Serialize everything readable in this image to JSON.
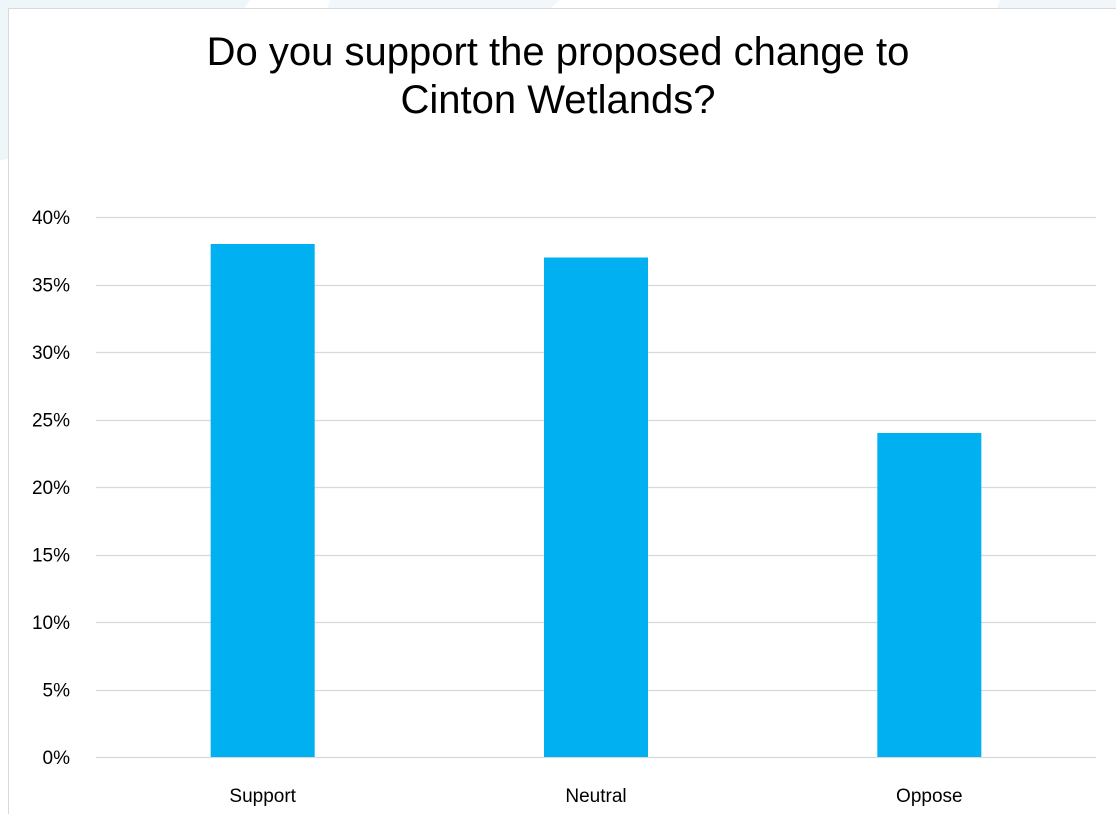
{
  "chart_data": {
    "type": "bar",
    "title": "Do you support the proposed change to Cinton Wetlands?",
    "title_lines": [
      "Do you support the proposed change to",
      "Cinton Wetlands?"
    ],
    "categories": [
      "Support",
      "Neutral",
      "Oppose"
    ],
    "values": [
      38,
      37,
      24
    ],
    "value_unit": "%",
    "xlabel": "",
    "ylabel": "",
    "ylim": [
      0,
      40
    ],
    "yticks": [
      0,
      5,
      10,
      15,
      20,
      25,
      30,
      35,
      40
    ],
    "ytick_labels": [
      "0%",
      "5%",
      "10%",
      "15%",
      "20%",
      "25%",
      "30%",
      "35%",
      "40%"
    ],
    "grid": true,
    "legend": "none",
    "bar_color": "#00b0f0",
    "grid_color": "#d9d9d9"
  }
}
